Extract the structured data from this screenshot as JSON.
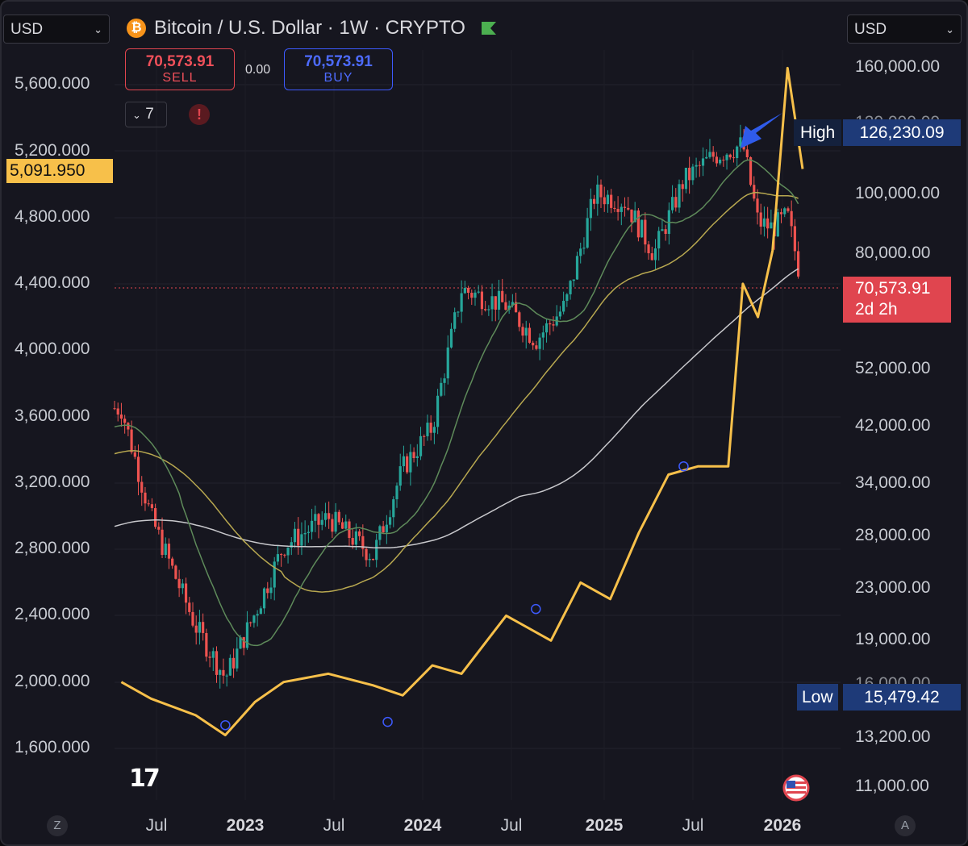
{
  "toolbar": {
    "currency_left": "USD",
    "currency_right": "USD",
    "symbol_title": "Bitcoin / U.S. Dollar · 1W · CRYPTO",
    "sell_price": "70,573.91",
    "sell_label": "SELL",
    "spread": "0.00",
    "buy_price": "70,573.91",
    "buy_label": "BUY",
    "indicator_count": "7",
    "warning_symbol": "!"
  },
  "left_axis": {
    "ticks": [
      "5,600.000",
      "5,200.000",
      "4,800.000",
      "4,400.000",
      "4,000.000",
      "3,600.000",
      "3,200.000",
      "2,800.000",
      "2,400.000",
      "2,000.000",
      "1,600.000"
    ],
    "current_value": "5,091.950"
  },
  "right_axis": {
    "ticks": [
      "160,000.00",
      "120,000.00",
      "100,000.00",
      "80,000.00",
      "70,573.91",
      "52,000.00",
      "42,000.00",
      "34,000.00",
      "28,000.00",
      "23,000.00",
      "19,000.00",
      "16,000.00",
      "13,200.00",
      "11,000.00"
    ],
    "high_label": "High",
    "high_value": "126,230.09",
    "low_label": "Low",
    "low_value": "15,479.42",
    "price_tag_value": "70,573.91",
    "price_tag_countdown": "2d 2h"
  },
  "x_axis": {
    "labels": [
      "Jul",
      "2023",
      "Jul",
      "2024",
      "Jul",
      "2025",
      "Jul",
      "2026"
    ]
  },
  "footer": {
    "logo_text": "17",
    "left_corner": "Z",
    "right_corner": "A"
  },
  "colors": {
    "background": "#16161f",
    "bull": "#26a69a",
    "bear": "#ef5350",
    "overlay_line": "#f7c04a",
    "ma_fast": "#5e8a5a",
    "ma_mid": "#b8a850",
    "ma_slow": "#c8c8cc",
    "arrow": "#2f5bea"
  },
  "chart_data": {
    "type": "candlestick",
    "title": "Bitcoin / U.S. Dollar · 1W · CRYPTO",
    "right_axis_scale": "log",
    "left_axis_scale": "linear",
    "grid": true,
    "btc_close_approx": {
      "dates": [
        "2022-04",
        "2022-06",
        "2022-09",
        "2022-11",
        "2023-01",
        "2023-03",
        "2023-06",
        "2023-09",
        "2023-11",
        "2024-01",
        "2024-03",
        "2024-06",
        "2024-08",
        "2024-10",
        "2024-12",
        "2025-02",
        "2025-04",
        "2025-06",
        "2025-08",
        "2025-10",
        "2025-11",
        "2025-12",
        "2026-01",
        "2026-02"
      ],
      "values": [
        45000,
        30000,
        20000,
        16500,
        21000,
        27000,
        30000,
        26000,
        36000,
        42000,
        70000,
        66000,
        58000,
        66000,
        100000,
        97000,
        80000,
        105000,
        115000,
        120000,
        90000,
        88000,
        92000,
        70574
      ]
    },
    "overlay_series": {
      "axis": "left",
      "dates": [
        "2022-04",
        "2022-06",
        "2022-09",
        "2022-11",
        "2023-01",
        "2023-03",
        "2023-06",
        "2023-09",
        "2023-11",
        "2024-01",
        "2024-03",
        "2024-06",
        "2024-09",
        "2024-11",
        "2025-01",
        "2025-03",
        "2025-05",
        "2025-07",
        "2025-09",
        "2025-10",
        "2025-11",
        "2025-12",
        "2026-01",
        "2026-02"
      ],
      "values": [
        2000,
        1900,
        1800,
        1680,
        1880,
        2000,
        2050,
        1980,
        1920,
        2100,
        2050,
        2400,
        2250,
        2600,
        2500,
        2900,
        3250,
        3300,
        3300,
        4400,
        4200,
        4600,
        5700,
        5091.95
      ]
    },
    "moving_averages": [
      "fast",
      "mid",
      "slow"
    ],
    "high": 126230.09,
    "low": 15479.42,
    "last_price": 70573.91
  }
}
